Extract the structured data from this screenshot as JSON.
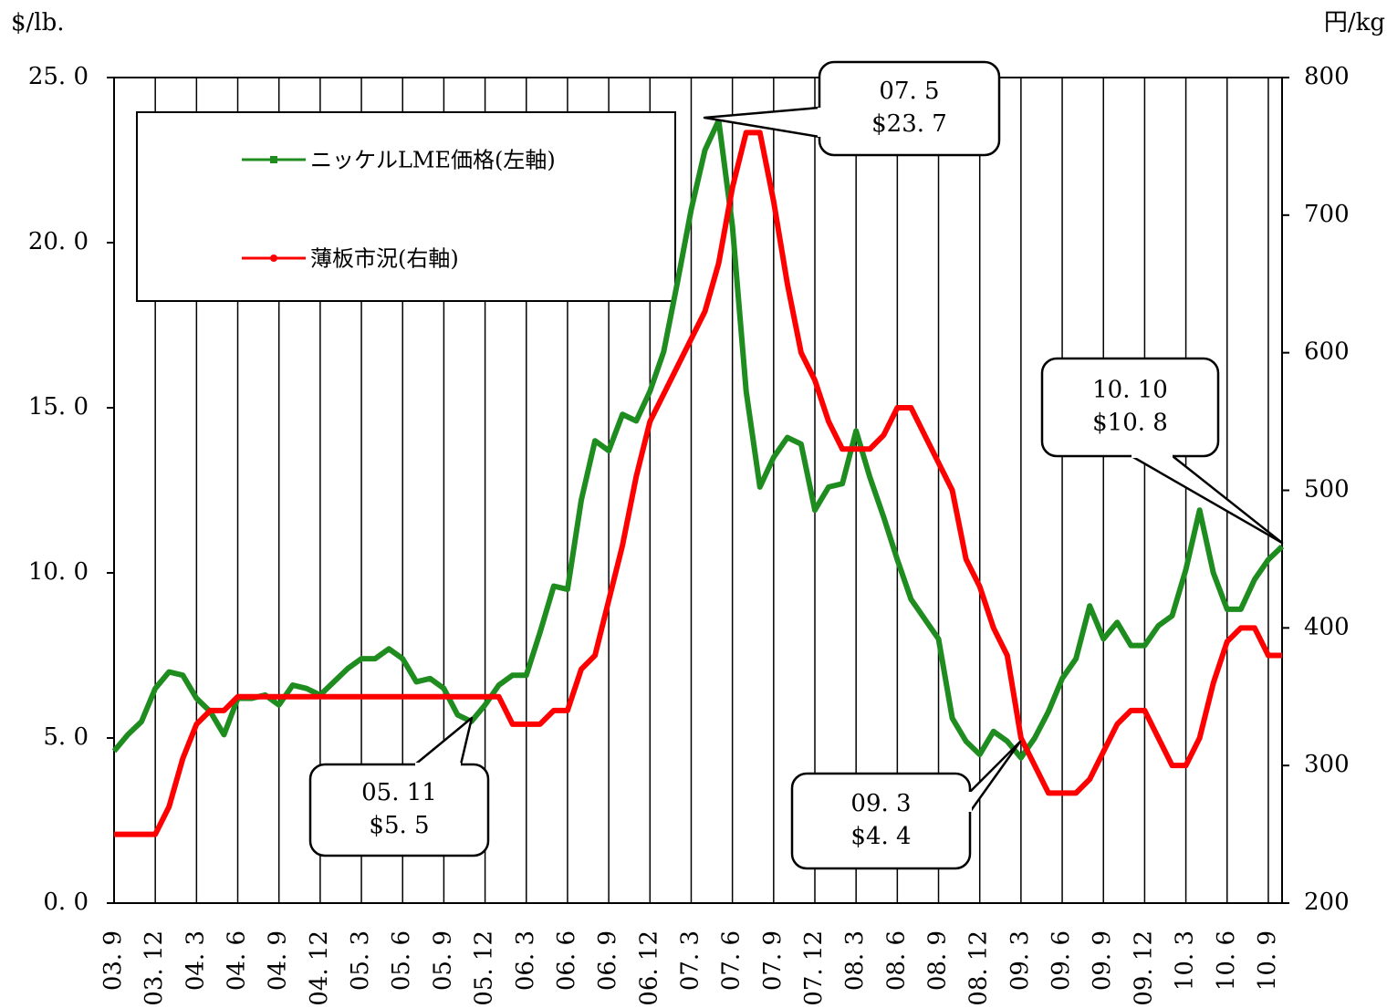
{
  "chart_data": {
    "type": "line",
    "y_label": "$/lb.",
    "y2_label": "円/kg",
    "categories": [
      "03. 9",
      null,
      null,
      "03. 12",
      null,
      null,
      "04. 3",
      null,
      null,
      "04. 6",
      null,
      null,
      "04. 9",
      null,
      null,
      "04. 12",
      null,
      null,
      "05. 3",
      null,
      null,
      "05. 6",
      null,
      null,
      "05. 9",
      null,
      null,
      "05. 12",
      null,
      null,
      "06. 3",
      null,
      null,
      "06. 6",
      null,
      null,
      "06. 9",
      null,
      null,
      "06. 12",
      null,
      null,
      "07. 3",
      null,
      null,
      "07. 6",
      null,
      null,
      "07. 9",
      null,
      null,
      "07. 12",
      null,
      null,
      "08. 3",
      null,
      null,
      "08. 6",
      null,
      null,
      "08. 9",
      null,
      null,
      "08. 12",
      null,
      null,
      "09. 3",
      null,
      null,
      "09. 6",
      null,
      null,
      "09. 9",
      null,
      null,
      "09. 12",
      null,
      null,
      "10. 3",
      null,
      null,
      "10. 6",
      null,
      null,
      "10. 9",
      null
    ],
    "series": [
      {
        "name": "ニッケルLME価格(左軸)",
        "color": "#1e8c1e",
        "axis": "y",
        "marker": "square",
        "values": [
          4.6,
          5.1,
          5.5,
          6.5,
          7.0,
          6.9,
          6.2,
          5.8,
          5.1,
          6.2,
          6.2,
          6.3,
          6.0,
          6.6,
          6.5,
          6.3,
          6.7,
          7.1,
          7.4,
          7.4,
          7.7,
          7.4,
          6.7,
          6.8,
          6.5,
          5.7,
          5.5,
          6.0,
          6.6,
          6.9,
          6.9,
          8.2,
          9.6,
          9.5,
          12.2,
          14.0,
          13.7,
          14.8,
          14.6,
          15.5,
          16.7,
          18.8,
          21.0,
          22.8,
          23.7,
          20.5,
          15.5,
          12.6,
          13.5,
          14.1,
          13.9,
          11.9,
          12.6,
          12.7,
          14.3,
          12.9,
          11.7,
          10.4,
          9.2,
          8.6,
          8.0,
          5.6,
          4.9,
          4.5,
          5.2,
          4.9,
          4.4,
          5.0,
          5.8,
          6.8,
          7.4,
          9.0,
          8.0,
          8.5,
          7.8,
          7.8,
          8.4,
          8.7,
          10.1,
          11.9,
          10.0,
          8.9,
          8.9,
          9.8,
          10.4,
          10.8
        ]
      },
      {
        "name": "薄板市況(右軸)",
        "color": "#ff0000",
        "axis": "y2",
        "marker": "circle",
        "values": [
          250,
          250,
          250,
          250,
          270,
          305,
          330,
          340,
          340,
          350,
          350,
          350,
          350,
          350,
          350,
          350,
          350,
          350,
          350,
          350,
          350,
          350,
          350,
          350,
          350,
          350,
          350,
          350,
          350,
          330,
          330,
          330,
          340,
          340,
          370,
          380,
          420,
          460,
          510,
          550,
          570,
          590,
          610,
          630,
          665,
          720,
          760,
          760,
          710,
          650,
          600,
          580,
          550,
          530,
          530,
          530,
          540,
          560,
          560,
          540,
          520,
          500,
          450,
          430,
          400,
          380,
          320,
          300,
          280,
          280,
          280,
          290,
          310,
          330,
          340,
          340,
          320,
          300,
          300,
          320,
          360,
          390,
          400,
          400,
          380,
          380
        ]
      }
    ],
    "ylim": [
      0,
      25
    ],
    "yticks": [
      {
        "value": 0,
        "label": "0. 0"
      },
      {
        "value": 5,
        "label": "5. 0"
      },
      {
        "value": 10,
        "label": "10. 0"
      },
      {
        "value": 15,
        "label": "15. 0"
      },
      {
        "value": 20,
        "label": "20. 0"
      },
      {
        "value": 25,
        "label": "25. 0"
      }
    ],
    "y2lim": [
      200,
      800
    ],
    "y2ticks": [
      200,
      300,
      400,
      500,
      600,
      700,
      800
    ],
    "annotations": [
      {
        "lines": [
          "07. 5",
          "$23. 7"
        ]
      },
      {
        "lines": [
          "10. 10",
          "$10. 8"
        ]
      },
      {
        "lines": [
          "05. 11",
          "$5. 5"
        ]
      },
      {
        "lines": [
          "09. 3",
          "$4. 4"
        ]
      }
    ]
  }
}
